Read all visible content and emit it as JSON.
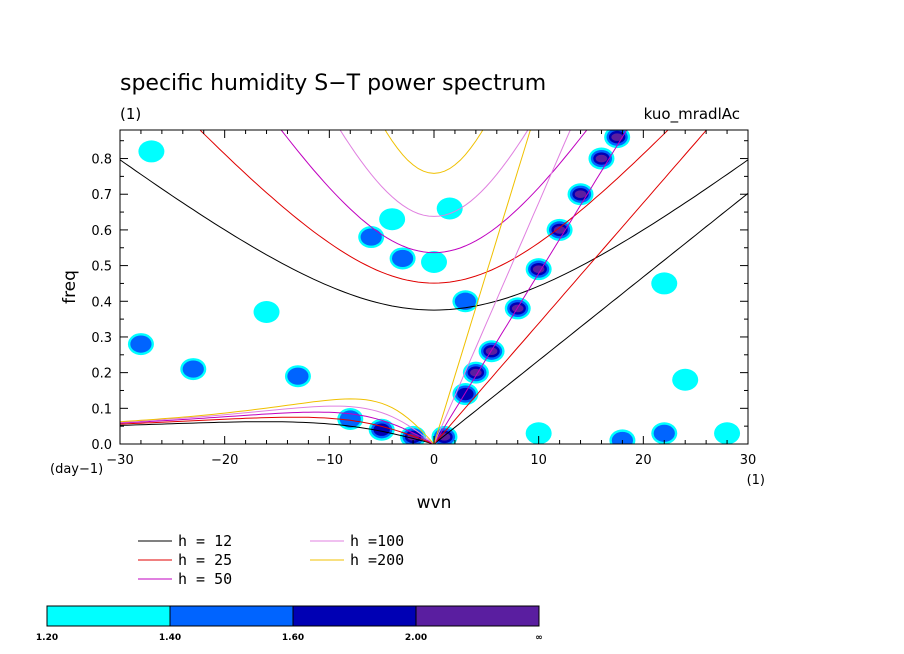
{
  "chart_data": {
    "type": "contour",
    "title": "specific humidity S−T power spectrum",
    "subtitle_left": "(1)",
    "subtitle_right": "kuo_mradlAc",
    "xlabel": "wvn",
    "ylabel": "freq",
    "x_unit_label": "(1)",
    "y_unit_label": "(day−1)",
    "xlim": [
      -30,
      30
    ],
    "ylim": [
      0,
      0.88
    ],
    "x_ticks": [
      -30,
      -20,
      -10,
      0,
      10,
      20,
      30
    ],
    "x_tick_labels": [
      "−30",
      "−20",
      "−10",
      "0",
      "10",
      "20",
      "30"
    ],
    "y_ticks": [
      0,
      0.1,
      0.2,
      0.3,
      0.4,
      0.5,
      0.6,
      0.7,
      0.8
    ],
    "y_tick_labels": [
      "0.0",
      "0.1",
      "0.2",
      "0.3",
      "0.4",
      "0.5",
      "0.6",
      "0.7",
      "0.8"
    ],
    "dispersion_curves": [
      {
        "label": "h = 12",
        "h": 12,
        "color": "#000000"
      },
      {
        "label": "h = 25",
        "h": 25,
        "color": "#e00000"
      },
      {
        "label": "h = 50",
        "h": 50,
        "color": "#c000c0"
      },
      {
        "label": "h =100",
        "h": 100,
        "color": "#e080e0"
      },
      {
        "label": "h =200",
        "h": 200,
        "color": "#f0c000"
      }
    ],
    "contour_levels": [
      "1.20",
      "1.40",
      "1.60",
      "2.00",
      "∞"
    ],
    "contour_colors": [
      "#00ffff",
      "#0064ff",
      "#0000b4",
      "#5a1ea0"
    ],
    "blobs": [
      {
        "x": 8,
        "y": 0.38,
        "level": 3
      },
      {
        "x": 10,
        "y": 0.49,
        "level": 3
      },
      {
        "x": 12,
        "y": 0.6,
        "level": 3
      },
      {
        "x": 14,
        "y": 0.7,
        "level": 3
      },
      {
        "x": 16,
        "y": 0.8,
        "level": 3
      },
      {
        "x": 17.5,
        "y": 0.86,
        "level": 3
      },
      {
        "x": 5.5,
        "y": 0.26,
        "level": 3
      },
      {
        "x": 4,
        "y": 0.2,
        "level": 3
      },
      {
        "x": 3,
        "y": 0.14,
        "level": 2
      },
      {
        "x": 1,
        "y": 0.02,
        "level": 3
      },
      {
        "x": -2,
        "y": 0.02,
        "level": 3
      },
      {
        "x": -5,
        "y": 0.04,
        "level": 2
      },
      {
        "x": -8,
        "y": 0.07,
        "level": 1
      },
      {
        "x": -13,
        "y": 0.19,
        "level": 1
      },
      {
        "x": -23,
        "y": 0.21,
        "level": 1
      },
      {
        "x": -28,
        "y": 0.28,
        "level": 1
      },
      {
        "x": -6,
        "y": 0.58,
        "level": 1
      },
      {
        "x": -3,
        "y": 0.52,
        "level": 1
      },
      {
        "x": 0,
        "y": 0.51,
        "level": 0
      },
      {
        "x": 1.5,
        "y": 0.66,
        "level": 0
      },
      {
        "x": -4,
        "y": 0.63,
        "level": 0
      },
      {
        "x": 3,
        "y": 0.4,
        "level": 1
      },
      {
        "x": 10,
        "y": 0.03,
        "level": 0
      },
      {
        "x": 18,
        "y": 0.01,
        "level": 1
      },
      {
        "x": 22,
        "y": 0.03,
        "level": 1
      },
      {
        "x": 28,
        "y": 0.03,
        "level": 0
      },
      {
        "x": -27,
        "y": 0.82,
        "level": 0
      },
      {
        "x": -16,
        "y": 0.37,
        "level": 0
      },
      {
        "x": 22,
        "y": 0.45,
        "level": 0
      },
      {
        "x": 24,
        "y": 0.18,
        "level": 0
      }
    ]
  }
}
